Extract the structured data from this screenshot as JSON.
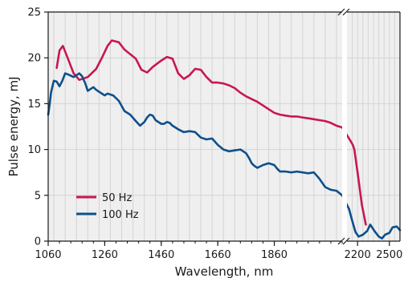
{
  "chart_data": {
    "type": "line",
    "xlabel": "Wavelength, nm",
    "ylabel": "Pulse energy, mJ",
    "ylim": [
      0,
      25
    ],
    "y_ticks": [
      0,
      5,
      10,
      15,
      20,
      25
    ],
    "axis_break": "after 2100 nm",
    "segments": [
      {
        "xlim": [
          1060,
          2100
        ],
        "ticks": [
          1060,
          1260,
          1460,
          1660,
          1860
        ]
      },
      {
        "xlim": [
          2100,
          2600
        ],
        "ticks": [
          2200,
          2500
        ]
      }
    ],
    "grid": "on",
    "legend_position": "lower-left",
    "colors": {
      "series_1": "#c8174f",
      "series_2": "#0d4f8b",
      "grid": "#d4d4d4",
      "panel": "#efefef"
    },
    "series": [
      {
        "name": "50 Hz",
        "x": [
          1090,
          1100,
          1112,
          1125,
          1150,
          1170,
          1200,
          1230,
          1250,
          1270,
          1285,
          1310,
          1330,
          1350,
          1370,
          1390,
          1410,
          1430,
          1460,
          1480,
          1500,
          1520,
          1540,
          1560,
          1580,
          1600,
          1620,
          1640,
          1660,
          1680,
          1700,
          1720,
          1740,
          1760,
          1780,
          1800,
          1820,
          1840,
          1860,
          1880,
          1900,
          1920,
          1940,
          1960,
          1980,
          2000,
          2020,
          2040,
          2060,
          2080,
          2100,
          2130,
          2155,
          2170,
          2200,
          2240,
          2278
        ],
        "y": [
          18.9,
          20.8,
          21.3,
          20.3,
          18.3,
          17.6,
          17.9,
          18.8,
          20.0,
          21.3,
          21.9,
          21.7,
          20.9,
          20.4,
          19.9,
          18.7,
          18.4,
          19.0,
          19.7,
          20.1,
          19.9,
          18.3,
          17.7,
          18.1,
          18.8,
          18.7,
          17.9,
          17.3,
          17.3,
          17.2,
          17.0,
          16.7,
          16.2,
          15.8,
          15.5,
          15.2,
          14.8,
          14.4,
          14.0,
          13.8,
          13.7,
          13.6,
          13.6,
          13.5,
          13.4,
          13.3,
          13.2,
          13.1,
          12.9,
          12.6,
          12.4,
          11.0,
          10.5,
          10.0,
          7.5,
          4.0,
          1.8
        ]
      },
      {
        "name": "100 Hz",
        "x": [
          1060,
          1065,
          1070,
          1080,
          1090,
          1100,
          1110,
          1120,
          1130,
          1150,
          1170,
          1180,
          1190,
          1200,
          1210,
          1220,
          1230,
          1245,
          1260,
          1270,
          1290,
          1310,
          1330,
          1350,
          1370,
          1385,
          1400,
          1410,
          1420,
          1430,
          1440,
          1460,
          1470,
          1480,
          1490,
          1500,
          1520,
          1540,
          1560,
          1580,
          1600,
          1620,
          1640,
          1660,
          1680,
          1700,
          1720,
          1740,
          1760,
          1770,
          1780,
          1790,
          1800,
          1820,
          1840,
          1860,
          1870,
          1880,
          1900,
          1920,
          1940,
          1960,
          1980,
          2000,
          2020,
          2040,
          2060,
          2080,
          2100,
          2120,
          2150,
          2180,
          2210,
          2250,
          2290,
          2320,
          2360,
          2400,
          2430,
          2460,
          2500,
          2530,
          2570,
          2600
        ],
        "y": [
          13.8,
          14.9,
          16.2,
          17.5,
          17.4,
          16.9,
          17.5,
          18.3,
          18.2,
          17.9,
          18.3,
          18.0,
          17.3,
          16.4,
          16.6,
          16.8,
          16.5,
          16.2,
          15.9,
          16.1,
          15.9,
          15.3,
          14.2,
          13.8,
          13.1,
          12.6,
          13.0,
          13.5,
          13.8,
          13.7,
          13.2,
          12.8,
          12.8,
          13.0,
          12.9,
          12.6,
          12.2,
          11.9,
          12.0,
          11.9,
          11.3,
          11.1,
          11.2,
          10.5,
          10.0,
          9.8,
          9.9,
          10.0,
          9.6,
          9.1,
          8.5,
          8.2,
          8.0,
          8.3,
          8.5,
          8.3,
          7.9,
          7.6,
          7.6,
          7.5,
          7.6,
          7.5,
          7.4,
          7.5,
          6.8,
          5.9,
          5.6,
          5.5,
          5.0,
          3.5,
          2.2,
          1.0,
          0.5,
          0.7,
          1.1,
          1.8,
          1.1,
          0.5,
          0.3,
          0.7,
          0.9,
          1.5,
          1.6,
          1.2
        ]
      }
    ]
  }
}
